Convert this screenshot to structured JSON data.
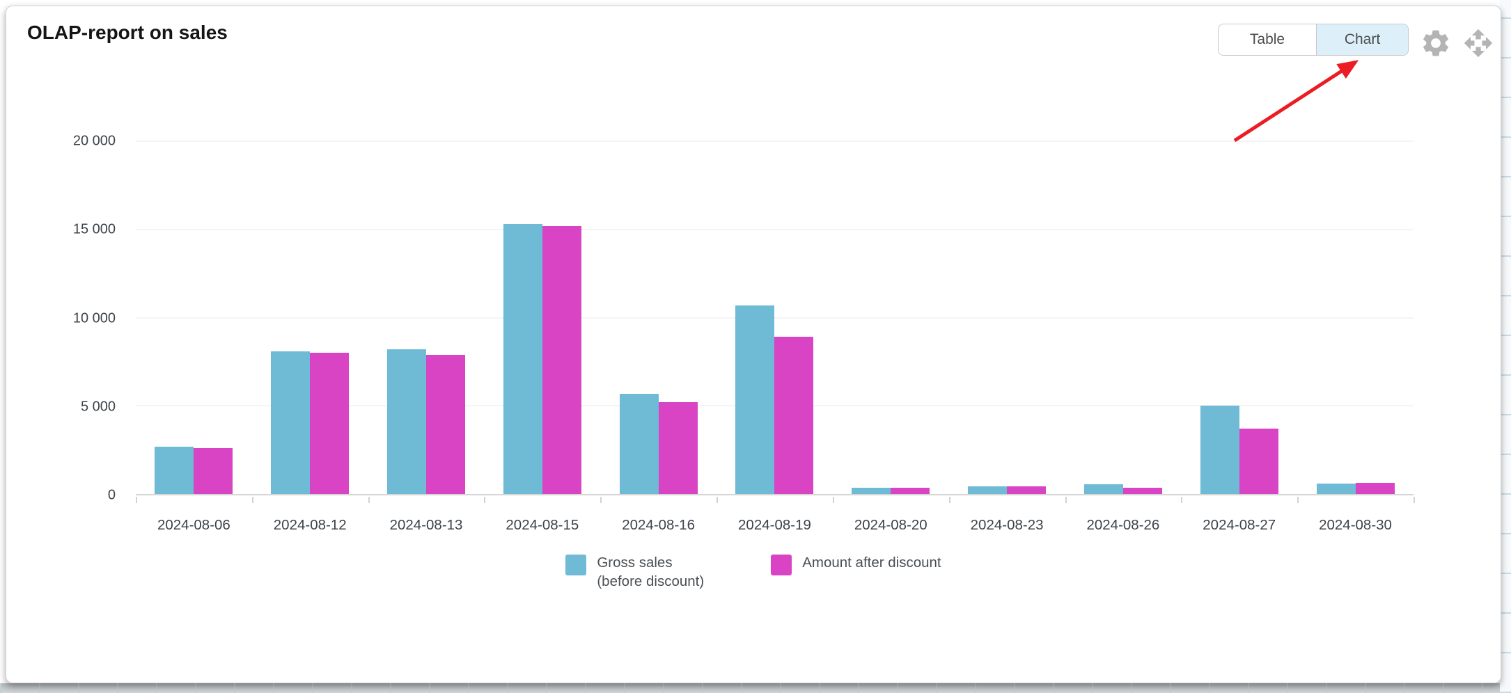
{
  "header": {
    "title": "OLAP-report on sales",
    "view_toggle": {
      "options": [
        "Table",
        "Chart"
      ],
      "selected": "Chart",
      "selected_bg": "#ddf0fa"
    },
    "icons": [
      "gear-icon",
      "move-icon"
    ],
    "icon_color": "#b4b4b4"
  },
  "annotation": {
    "type": "red-arrow",
    "points_at": "Chart",
    "color": "#ec1c24"
  },
  "chart_data": {
    "type": "bar",
    "title": "OLAP-report on sales",
    "categories": [
      "2024-08-06",
      "2024-08-12",
      "2024-08-13",
      "2024-08-15",
      "2024-08-16",
      "2024-08-19",
      "2024-08-20",
      "2024-08-23",
      "2024-08-26",
      "2024-08-27",
      "2024-08-30"
    ],
    "series": [
      {
        "key": "gross-sales",
        "name": "Gross sales (before discount)",
        "legend_lines": [
          "Gross sales",
          "(before discount)"
        ],
        "color": "#6FBBD6",
        "values": [
          2700,
          8100,
          8200,
          15300,
          5700,
          10700,
          350,
          450,
          550,
          5000,
          600
        ]
      },
      {
        "key": "amount-after-discount",
        "name": "Amount after discount",
        "legend_lines": [
          "Amount after discount"
        ],
        "color": "#D844C4",
        "values": [
          2600,
          8000,
          7900,
          15200,
          5200,
          8900,
          350,
          450,
          350,
          3700,
          650
        ]
      }
    ],
    "xlabel": "",
    "ylabel": "",
    "ylim": [
      0,
      20000
    ],
    "y_ticks": [
      {
        "value": 0,
        "label": "0"
      },
      {
        "value": 5000,
        "label": "5 000"
      },
      {
        "value": 10000,
        "label": "10 000"
      },
      {
        "value": 15000,
        "label": "15 000"
      },
      {
        "value": 20000,
        "label": "20 000"
      }
    ],
    "grid": true,
    "legend_position": "bottom"
  }
}
